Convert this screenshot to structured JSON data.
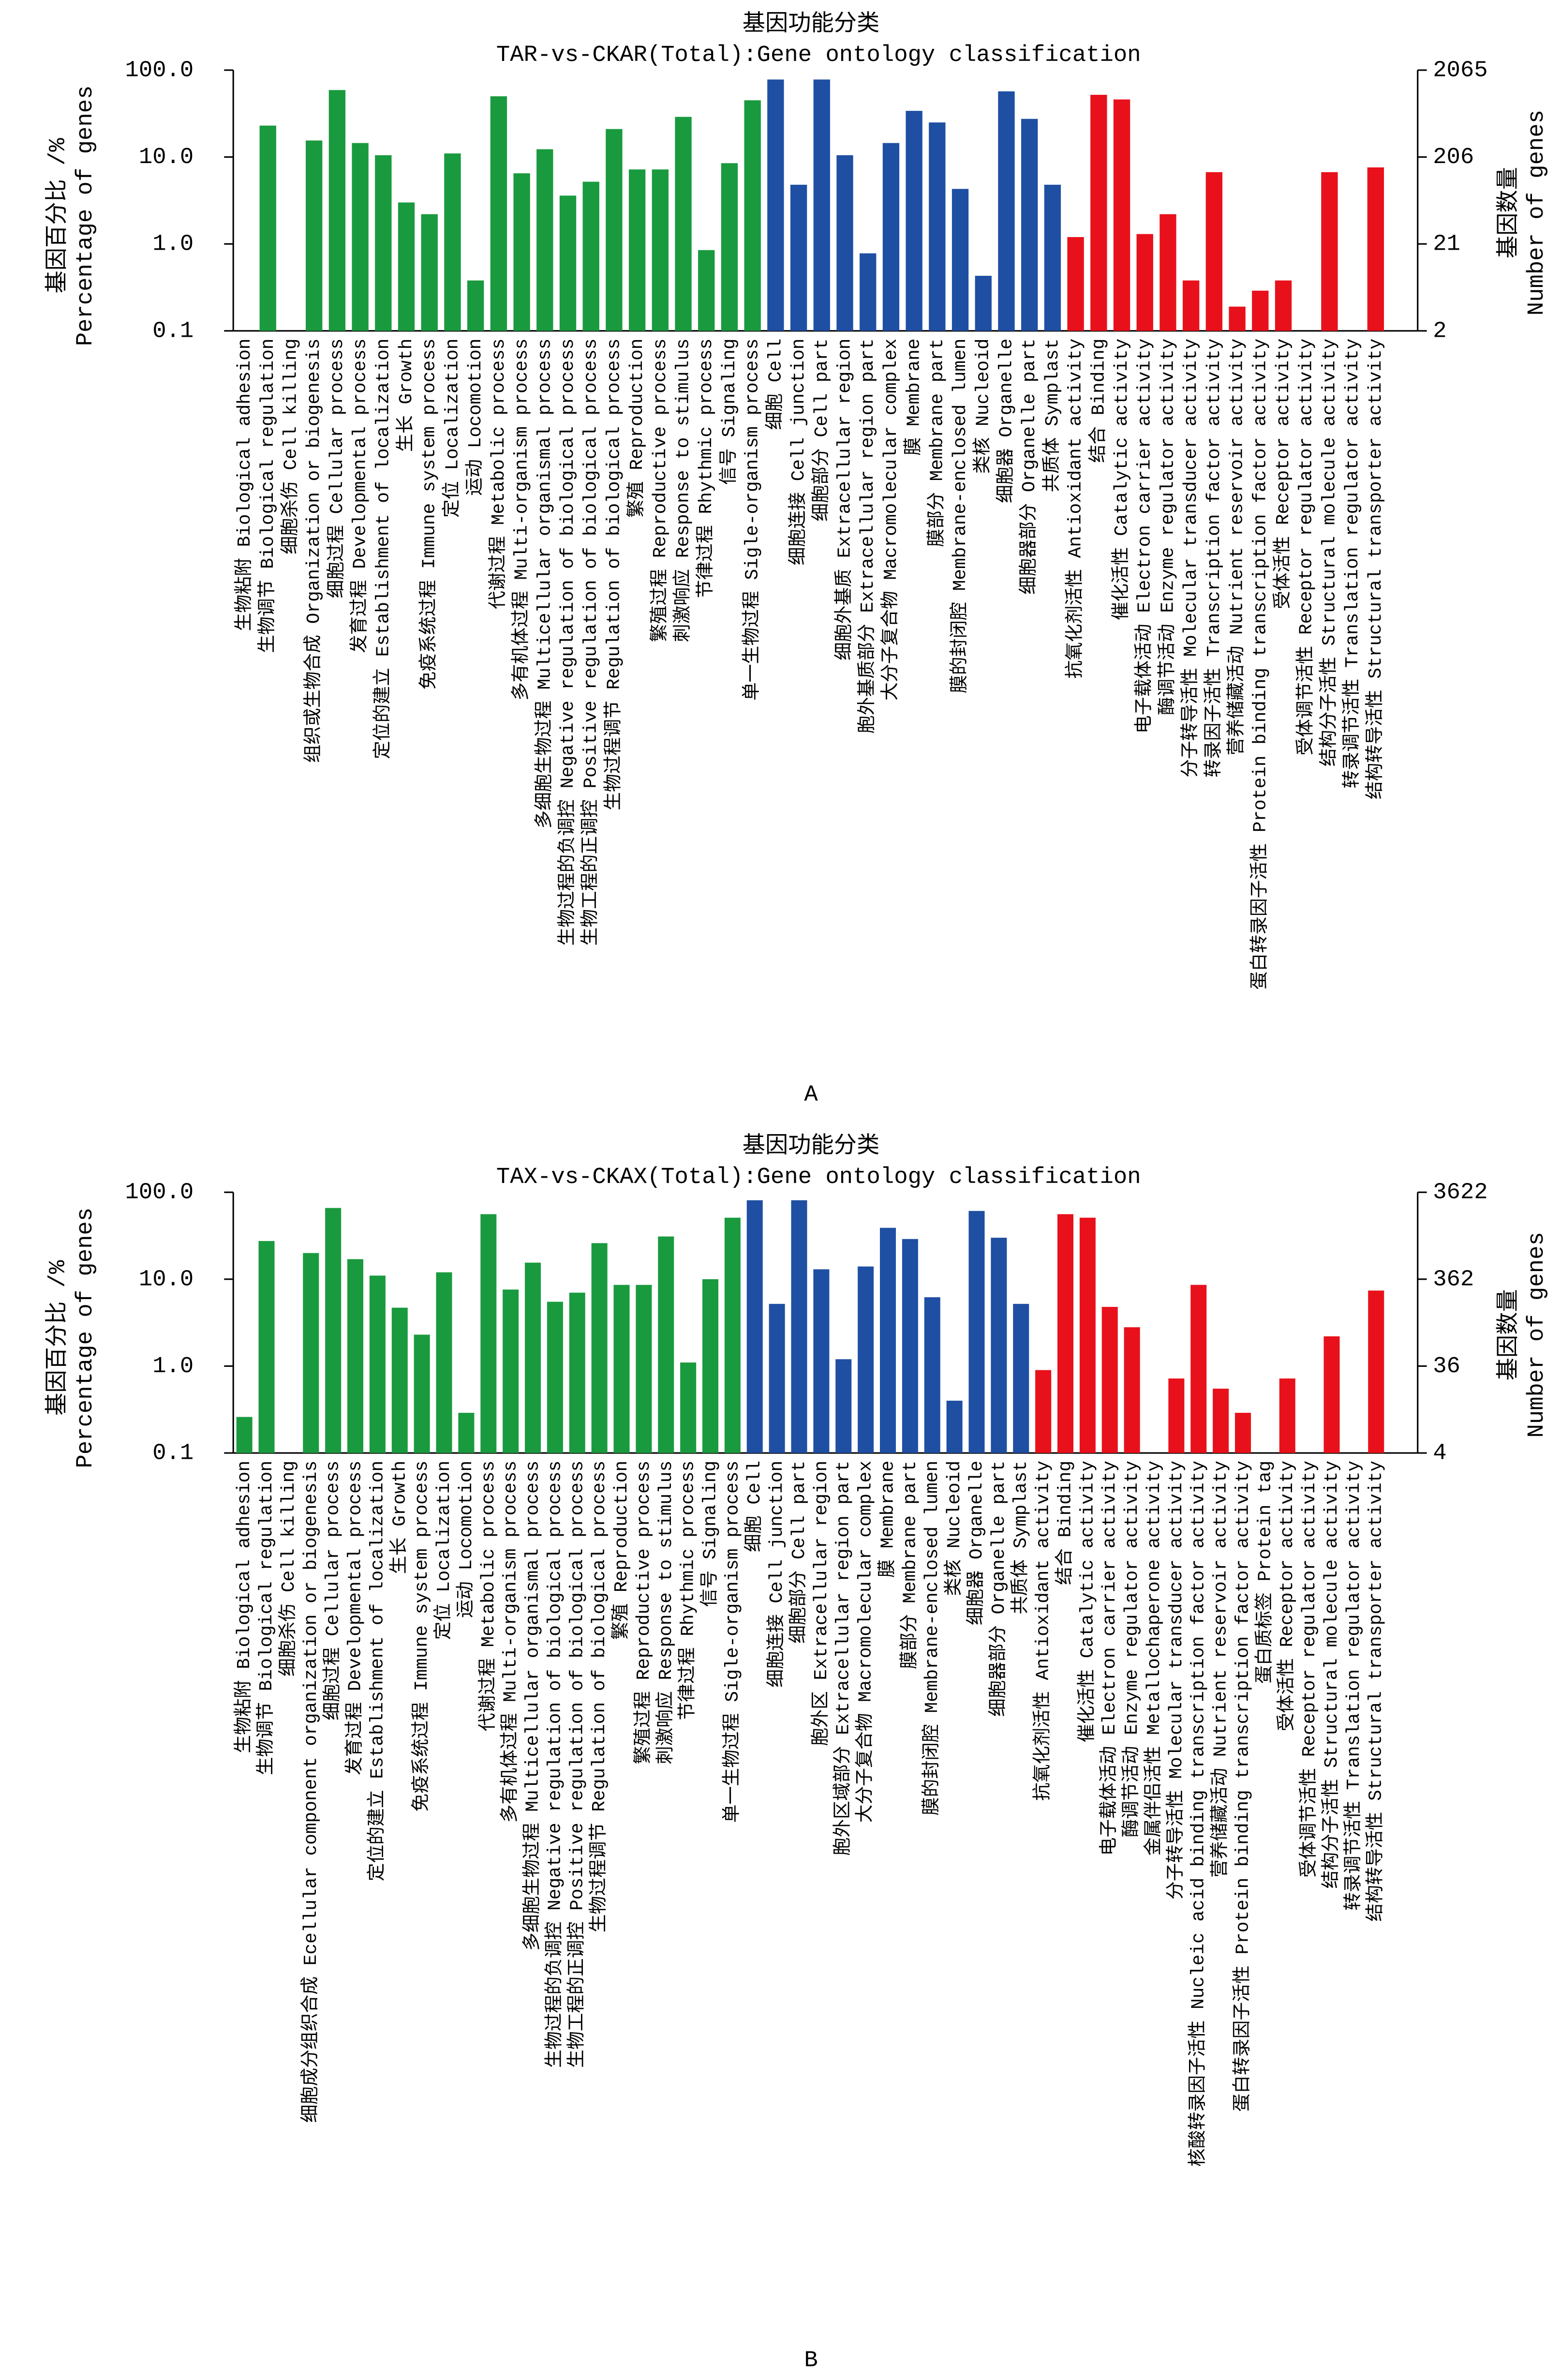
{
  "chart_data": [
    {
      "type": "bar",
      "title": "基因功能分类",
      "subtitle": "TAR-vs-CKAR(Total):Gene ontology classification",
      "panel_label": "A",
      "ylabel": [
        "基因百分比 /%",
        "Percentage of genes"
      ],
      "y2label": [
        "基因数量",
        "Number of genes"
      ],
      "log_scale": true,
      "ylim": [
        0.1,
        100
      ],
      "yticks": [
        {
          "value": 100,
          "label": "100.0"
        },
        {
          "value": 10,
          "label": "10.0"
        },
        {
          "value": 1,
          "label": "1.0"
        },
        0.1
      ],
      "y2lim": [
        2.065,
        2065
      ],
      "y2ticks": [
        2065,
        {
          "value": 206.5,
          "label": "206"
        },
        {
          "value": 20.65,
          "label": "21"
        },
        {
          "value": 2.065,
          "label": "2"
        }
      ],
      "categories": [
        "生物粘附 Biological adhesion",
        "生物调节 Biological regulation",
        "细胞杀伤 Cell killing",
        "组织或生物合成 Organization or biogenesis",
        "细胞过程 Cellular process",
        "发育过程 Developmental process",
        "定位的建立 Establishment of localization",
        "生长 Growth",
        "免疫系统过程 Immune system process",
        "定位 Localization",
        "运动 Locomotion",
        "代谢过程 Metabolic process",
        "多有机体过程 Multi-organism process",
        "多细胞生物过程 Multicellular organismal process",
        "生物过程的负调控 Negative regulation of biological process",
        "生物工程的正调控 Positive regulation of biological process",
        "生物过程调节 Regulation of biological process",
        "繁殖 Reproduction",
        "繁殖过程 Reproductive process",
        "刺激响应 Response to stimulus",
        "节律过程 Rhythmic process",
        "信号 Signaling",
        "单一生物过程 Sigle-organism process",
        "细胞 Cell",
        "细胞连接 Cell junction",
        "细胞部分 Cell part",
        "细胞外基质 Extracellular region",
        "胞外基质部分 Extracellular region part",
        "大分子复合物 Macromolecular complex",
        "膜 Membrane",
        "膜部分 Membrane part",
        "膜的封闭腔 Membrane-enclosed lumen",
        "类核 Nucleoid",
        "细胞器 Organelle",
        "细胞器部分 Organelle part",
        "共质体 Symplast",
        "抗氧化剂活性 Antioxidant activity",
        "结合 Binding",
        "催化活性 Catalytic activity",
        "电子载体活动 Electron carrier activity",
        "酶调节活动 Enzyme regulator activity",
        "分子转导活性 Molecular transducer activity",
        "转录因子活性 Transcription factor activity",
        "营养储藏活动 Nutrient reservoir activity",
        "蛋白转录因子活性 Protein binding transcription factor activity",
        "受体活性 Receptor activity",
        "受体调节活性 Receptor regulator activity",
        "结构分子活性 Structural molecule activity",
        "转录调节活性 Translation regulator activity",
        "结构转导活性 Structural transporter activity"
      ],
      "values": [
        null,
        23,
        null,
        15.5,
        59,
        14.5,
        10.5,
        3.0,
        2.2,
        11,
        0.38,
        50,
        6.5,
        12.3,
        3.6,
        5.2,
        21,
        7.2,
        7.2,
        29,
        0.85,
        8.5,
        45,
        78,
        4.8,
        78,
        10.5,
        0.78,
        14.5,
        34,
        25,
        4.3,
        0.43,
        57,
        27.5,
        4.8,
        1.2,
        52,
        46,
        1.3,
        2.2,
        0.38,
        6.7,
        0.19,
        0.29,
        0.38,
        null,
        6.7,
        null,
        7.6
      ],
      "colors": [
        "#1a9a3e",
        "#1a9a3e",
        "#1a9a3e",
        "#1a9a3e",
        "#1a9a3e",
        "#1a9a3e",
        "#1a9a3e",
        "#1a9a3e",
        "#1a9a3e",
        "#1a9a3e",
        "#1a9a3e",
        "#1a9a3e",
        "#1a9a3e",
        "#1a9a3e",
        "#1a9a3e",
        "#1a9a3e",
        "#1a9a3e",
        "#1a9a3e",
        "#1a9a3e",
        "#1a9a3e",
        "#1a9a3e",
        "#1a9a3e",
        "#1a9a3e",
        "#1f4fa3",
        "#1f4fa3",
        "#1f4fa3",
        "#1f4fa3",
        "#1f4fa3",
        "#1f4fa3",
        "#1f4fa3",
        "#1f4fa3",
        "#1f4fa3",
        "#1f4fa3",
        "#1f4fa3",
        "#1f4fa3",
        "#1f4fa3",
        "#e8111b",
        "#e8111b",
        "#e8111b",
        "#e8111b",
        "#e8111b",
        "#e8111b",
        "#e8111b",
        "#e8111b",
        "#e8111b",
        "#e8111b",
        "#e8111b",
        "#e8111b",
        "#e8111b",
        "#e8111b"
      ]
    },
    {
      "type": "bar",
      "title": "基因功能分类",
      "subtitle": "TAX-vs-CKAX(Total):Gene ontology classification",
      "panel_label": "B",
      "ylabel": [
        "基因百分比 /%",
        "Percentage of genes"
      ],
      "y2label": [
        "基因数量",
        "Number of genes"
      ],
      "log_scale": true,
      "ylim": [
        0.1,
        100
      ],
      "yticks": [
        {
          "value": 100,
          "label": "100.0"
        },
        {
          "value": 10,
          "label": "10.0"
        },
        {
          "value": 1,
          "label": "1.0"
        },
        0.1
      ],
      "y2lim": [
        3.622,
        3622
      ],
      "y2ticks": [
        3622,
        {
          "value": 362.2,
          "label": "362"
        },
        {
          "value": 36.22,
          "label": "36"
        },
        {
          "value": 3.622,
          "label": "4"
        }
      ],
      "categories": [
        "生物粘附 Biological adhesion",
        "生物调节 Biological regulation",
        "细胞杀伤 Cell killing",
        "细胞成分组织合成 Ecellular component organization or biogenesis",
        "细胞过程 Cellular process",
        "发育过程 Developmental process",
        "定位的建立 Establishment of localization",
        "生长 Growth",
        "免疫系统过程 Immune system process",
        "定位 Localization",
        "运动 Locomotion",
        "代谢过程 Metabolic process",
        "多有机体过程 Multi-organism process",
        "多细胞生物过程 Multicellular organismal process",
        "生物过程的负调控 Negative regulation of biological process",
        "生物工程的正调控 Positive regulation of biological process",
        "生物过程调节 Regulation of biological process",
        "繁殖 Reproduction",
        "繁殖过程 Reproductive process",
        "刺激响应 Response to stimulus",
        "节律过程 Rhythmic process",
        "信号 Signaling",
        "单一生物过程 Sigle-organism process",
        "细胞 Cell",
        "细胞连接 Cell junction",
        "细胞部分 Cell part",
        "胞外区 Extracellular region",
        "胞外区域部分 Extracellular region part",
        "大分子复合物 Macromolecular complex",
        "膜 Membrane",
        "膜部分 Membrane part",
        "膜的封闭腔 Membrane-enclosed lumen",
        "类核 Nucleoid",
        "细胞器 Organelle",
        "细胞器部分 Organelle part",
        "共质体 Symplast",
        "抗氧化剂活性 Antioxidant activity",
        "结合 Binding",
        "催化活性 Catalytic activity",
        "电子载体活动 Electron carrier activity",
        "酶调节活动 Enzyme regulator activity",
        "金属伴侣活性 Metallochaperone activity",
        "分子转导活性 Molecular transducer activity",
        "核酸转录因子活性 Nucleic acid binding transcription factor activity",
        "营养储藏活动 Nutrient reservoir activity",
        "蛋白转录因子活性 Protein binding transcription factor activity",
        "蛋白质标签 Protein tag",
        "受体活性 Receptor activity",
        "受体调节活性 Receptor regulator activity",
        "结构分子活性 Structural molecule activity",
        "转录调节活性 Translation regulator activity",
        "结构转导活性 Structural transporter activity"
      ],
      "values": [
        0.26,
        27.5,
        null,
        20,
        66,
        17,
        11,
        4.7,
        2.3,
        12,
        0.29,
        56,
        7.6,
        15.5,
        5.5,
        7,
        26,
        8.6,
        8.6,
        31,
        1.1,
        10,
        51,
        81,
        5.2,
        81,
        13,
        1.2,
        14,
        39,
        29,
        6.2,
        0.4,
        61,
        30,
        5.2,
        0.9,
        56,
        51,
        4.8,
        2.8,
        null,
        0.72,
        8.6,
        0.55,
        0.29,
        null,
        0.72,
        null,
        2.2,
        null,
        7.4
      ],
      "colors": [
        "#1a9a3e",
        "#1a9a3e",
        "#1a9a3e",
        "#1a9a3e",
        "#1a9a3e",
        "#1a9a3e",
        "#1a9a3e",
        "#1a9a3e",
        "#1a9a3e",
        "#1a9a3e",
        "#1a9a3e",
        "#1a9a3e",
        "#1a9a3e",
        "#1a9a3e",
        "#1a9a3e",
        "#1a9a3e",
        "#1a9a3e",
        "#1a9a3e",
        "#1a9a3e",
        "#1a9a3e",
        "#1a9a3e",
        "#1a9a3e",
        "#1a9a3e",
        "#1f4fa3",
        "#1f4fa3",
        "#1f4fa3",
        "#1f4fa3",
        "#1f4fa3",
        "#1f4fa3",
        "#1f4fa3",
        "#1f4fa3",
        "#1f4fa3",
        "#1f4fa3",
        "#1f4fa3",
        "#1f4fa3",
        "#1f4fa3",
        "#e8111b",
        "#e8111b",
        "#e8111b",
        "#e8111b",
        "#e8111b",
        "#e8111b",
        "#e8111b",
        "#e8111b",
        "#e8111b",
        "#e8111b",
        "#e8111b",
        "#e8111b",
        "#e8111b",
        "#e8111b",
        "#e8111b",
        "#e8111b"
      ]
    }
  ]
}
